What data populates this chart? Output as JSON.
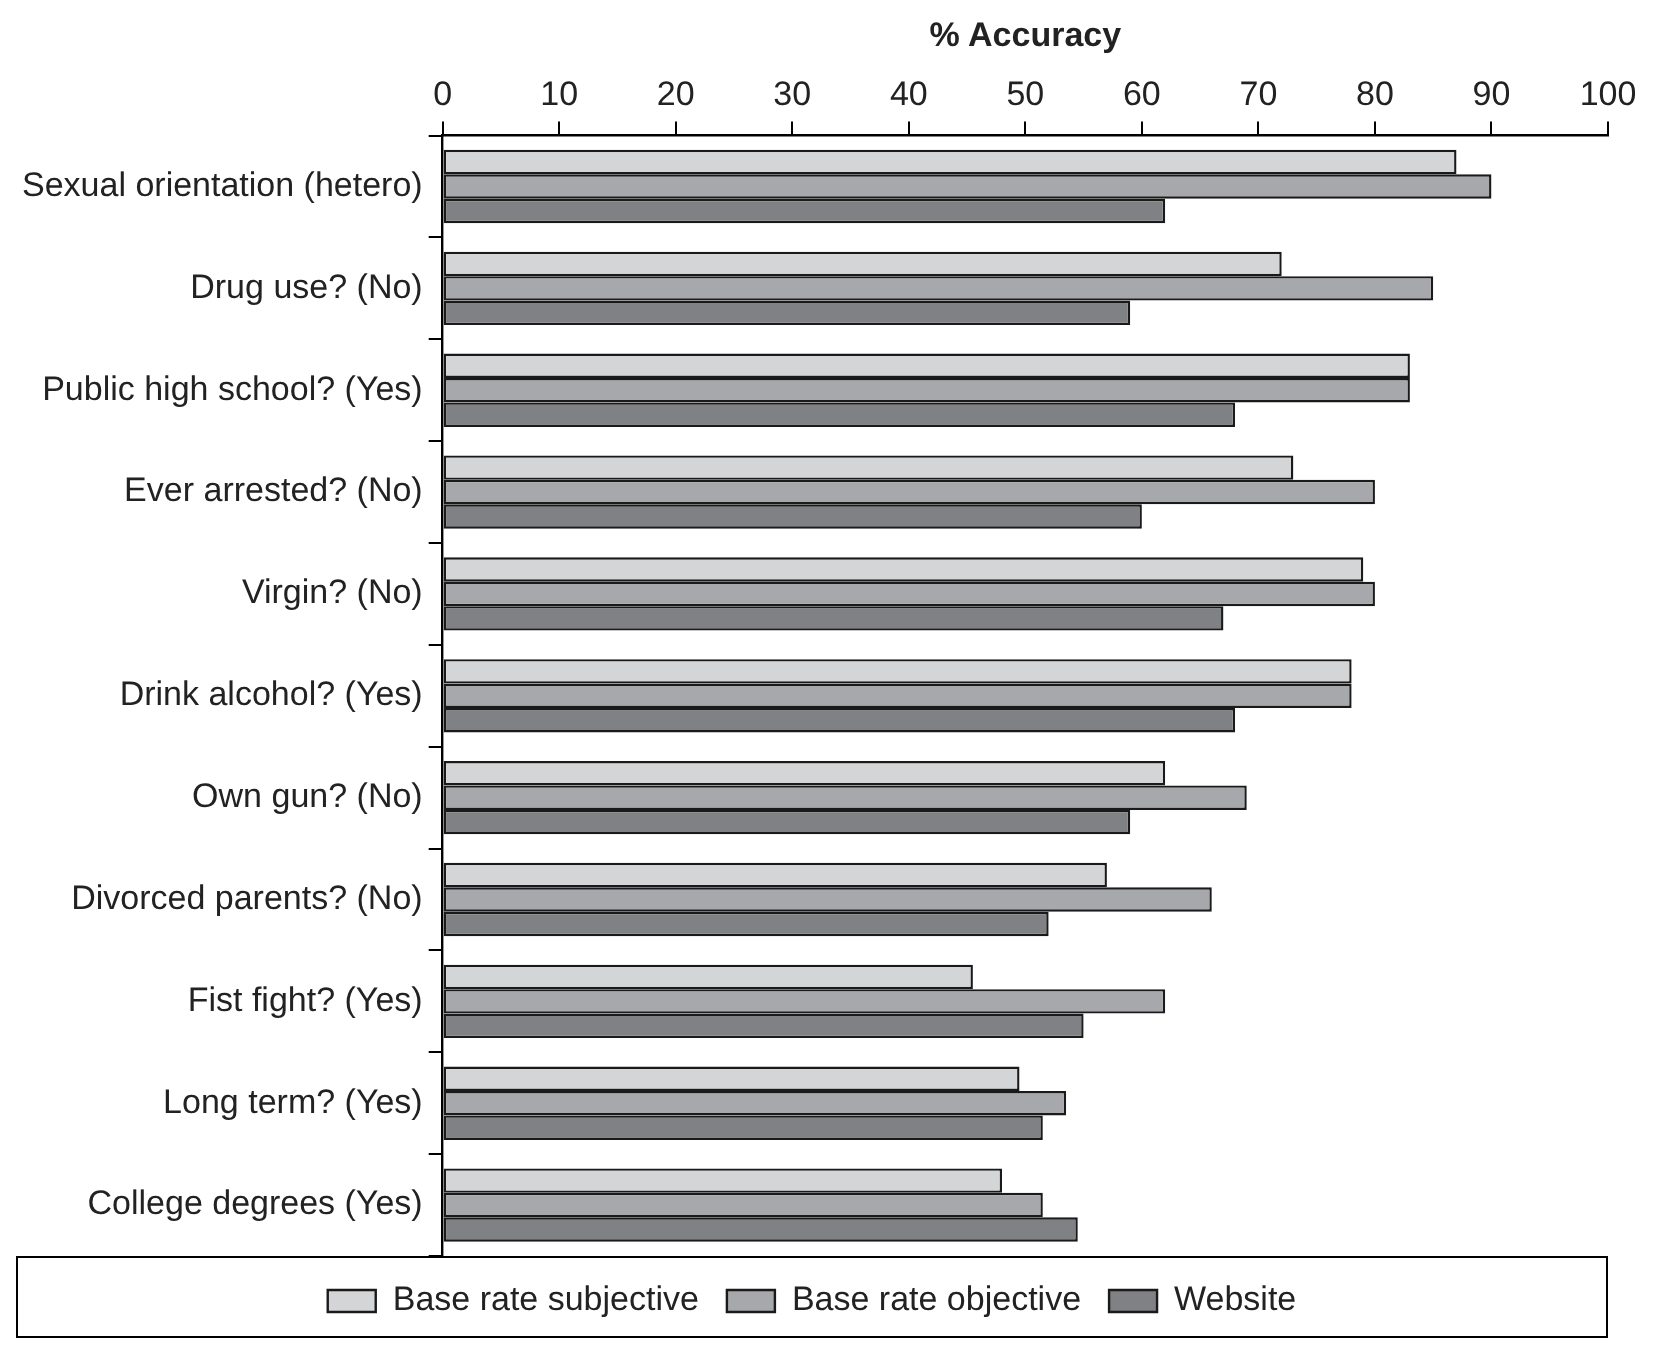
{
  "chart_data": {
    "type": "bar",
    "orientation": "horizontal",
    "xlabel": "% Accuracy",
    "categories": [
      "Sexual orientation (hetero)",
      "Drug use? (No)",
      "Public high school? (Yes)",
      "Ever arrested? (No)",
      "Virgin? (No)",
      "Drink alcohol? (Yes)",
      "Own gun? (No)",
      "Divorced parents? (No)",
      "Fist fight? (Yes)",
      "Long term? (Yes)",
      "College degrees (Yes)"
    ],
    "series": [
      {
        "name": "Base rate subjective",
        "color": "#d4d5d7",
        "values": [
          87,
          72,
          83,
          73,
          79,
          78,
          62,
          57,
          45.5,
          49.5,
          48
        ]
      },
      {
        "name": "Base rate objective",
        "color": "#a7a8ab",
        "values": [
          90,
          85,
          83,
          80,
          80,
          78,
          69,
          66,
          62,
          53.5,
          51.5
        ]
      },
      {
        "name": "Website",
        "color": "#808184",
        "values": [
          62,
          59,
          68,
          60,
          67,
          68,
          59,
          52,
          55,
          51.5,
          54.5
        ]
      }
    ],
    "xlim": [
      0,
      100
    ],
    "xticks": [
      0,
      10,
      20,
      30,
      40,
      50,
      60,
      70,
      80,
      90,
      100
    ],
    "grid": false,
    "legend": "bottom"
  }
}
